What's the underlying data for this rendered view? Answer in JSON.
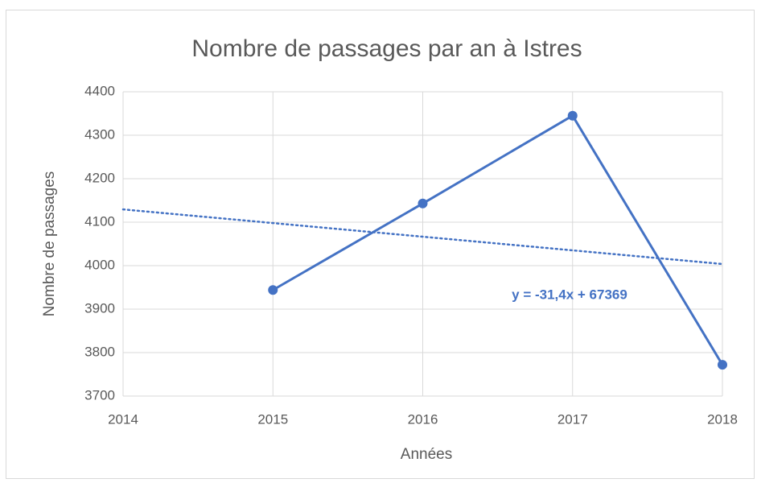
{
  "chart_data": {
    "type": "line",
    "title": "Nombre de passages par an à Istres",
    "x_label": "Années",
    "y_label": "Nombre de passages",
    "x": [
      2015,
      2016,
      2017,
      2018
    ],
    "series": [
      {
        "color": "#4472c4",
        "values": [
          3944,
          4143,
          4345,
          3772
        ]
      }
    ],
    "trendline": {
      "x": [
        2014,
        2018
      ],
      "values": [
        4129.4,
        4003.8
      ],
      "color": "#4472c4",
      "annotation": "y = -31,4x + 67369"
    },
    "xlim": [
      2014,
      2018
    ],
    "xticks": [
      2014,
      2015,
      2016,
      2017,
      2018
    ],
    "ylim": [
      3700,
      4400
    ],
    "yticks": [
      3700,
      3800,
      3900,
      4000,
      4100,
      4200,
      4300,
      4400
    ],
    "grid": true
  }
}
